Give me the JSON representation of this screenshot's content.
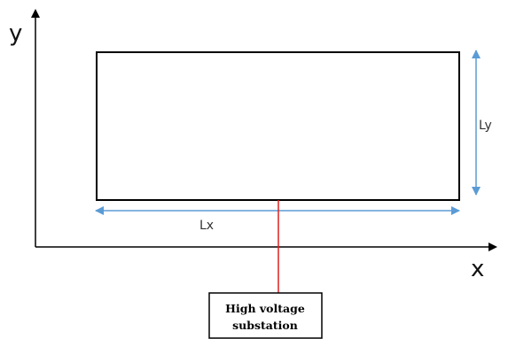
{
  "axes": {
    "x_label": "x",
    "y_label": "y"
  },
  "dimensions": {
    "width_label": "Lx",
    "height_label": "Ly"
  },
  "substation": {
    "line1": "High voltage",
    "line2": "substation"
  },
  "colors": {
    "axis": "#000000",
    "dimension_arrow": "#5b9bd5",
    "feeder_line": "#e02020",
    "rectangle": "#000000"
  }
}
